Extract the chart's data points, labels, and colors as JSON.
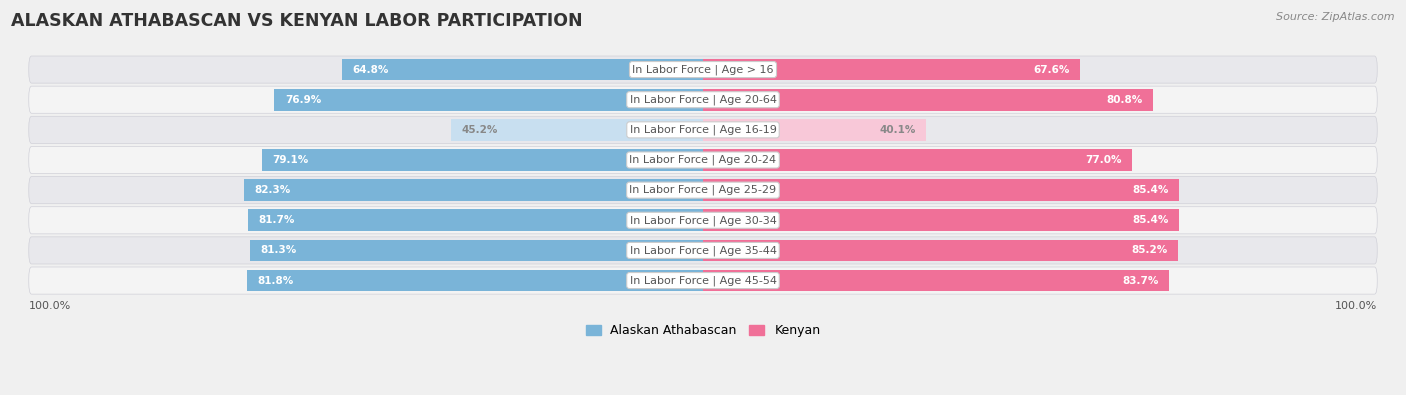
{
  "title": "ALASKAN ATHABASCAN VS KENYAN LABOR PARTICIPATION",
  "source": "Source: ZipAtlas.com",
  "categories": [
    "In Labor Force | Age > 16",
    "In Labor Force | Age 20-64",
    "In Labor Force | Age 16-19",
    "In Labor Force | Age 20-24",
    "In Labor Force | Age 25-29",
    "In Labor Force | Age 30-34",
    "In Labor Force | Age 35-44",
    "In Labor Force | Age 45-54"
  ],
  "alaskan_values": [
    64.8,
    76.9,
    45.2,
    79.1,
    82.3,
    81.7,
    81.3,
    81.8
  ],
  "kenyan_values": [
    67.6,
    80.8,
    40.1,
    77.0,
    85.4,
    85.4,
    85.2,
    83.7
  ],
  "alaskan_color": "#7ab4d8",
  "kenyan_color": "#f07098",
  "alaskan_light_color": "#c8dff0",
  "kenyan_light_color": "#f8c8d8",
  "bar_height": 0.72,
  "row_bg_light": "#f4f4f4",
  "row_bg_dark": "#e8e8ec",
  "label_fontsize": 8.0,
  "title_fontsize": 12.5,
  "value_fontsize": 7.5,
  "legend_fontsize": 9,
  "max_val": 100.0
}
